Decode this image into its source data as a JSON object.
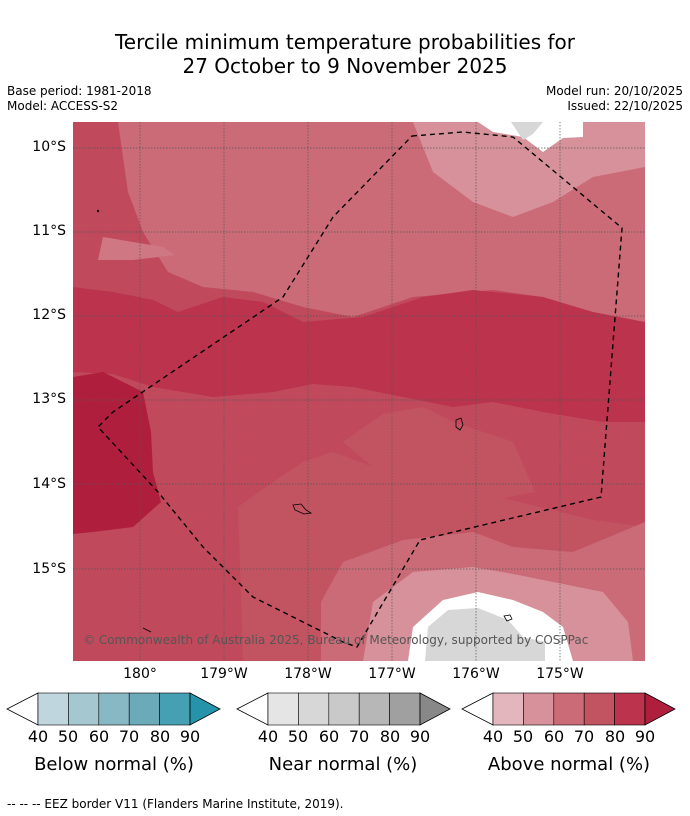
{
  "title_line1": "Tercile minimum temperature probabilities for",
  "title_line2": "27 October to 9 November 2025",
  "base_period": "Base period: 1981-2018",
  "model": "Model: ACCESS-S2",
  "model_run": "Model run: 20/10/2025",
  "issued": "Issued: 22/10/2025",
  "copyright": "© Commonwealth of Australia 2025, Bureau of Meteorology, supported by COSPPac",
  "lat_labels": [
    "10°S",
    "11°S",
    "12°S",
    "13°S",
    "14°S",
    "15°S"
  ],
  "lon_labels": [
    "180°",
    "179°W",
    "178°W",
    "177°W",
    "176°W",
    "175°W"
  ],
  "colorbars": [
    {
      "name": "below-normal",
      "title": "Below normal (%)",
      "ticks": [
        "40",
        "50",
        "60",
        "70",
        "80",
        "90"
      ],
      "colors": [
        "#bfd6df",
        "#a5c7d0",
        "#89b8c5",
        "#6aaab9",
        "#44a0b2",
        "#2594aa"
      ]
    },
    {
      "name": "near-normal",
      "title": "Near normal (%)",
      "ticks": [
        "40",
        "50",
        "60",
        "70",
        "80",
        "90"
      ],
      "colors": [
        "#e5e5e5",
        "#d7d7d7",
        "#c9c9c9",
        "#b7b7b7",
        "#a0a0a0",
        "#888888"
      ]
    },
    {
      "name": "above-normal",
      "title": "Above normal (%)",
      "ticks": [
        "40",
        "50",
        "60",
        "70",
        "80",
        "90"
      ],
      "colors": [
        "#e2b6bc",
        "#d6919a",
        "#cb6b78",
        "#c25462",
        "#bb334d",
        "#b01e3d"
      ]
    }
  ],
  "footer": "--  --  -- EEZ border V11 (Flanders Marine Institute, 2019)."
}
